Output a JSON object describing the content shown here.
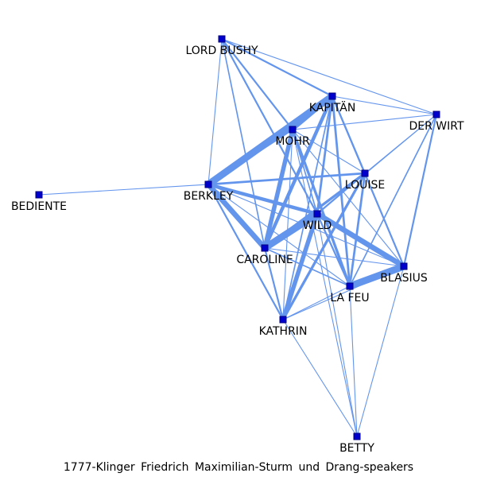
{
  "caption": "1777-Klinger_Friedrich_Maximilian-Sturm_und_Drang-speakers",
  "colors": {
    "edge": "#6495ED",
    "node_fill": "#0000CD",
    "node_stroke": "#000080"
  },
  "nodes": [
    {
      "id": "LORD BUSHY",
      "label": "LORD BUSHY"
    },
    {
      "id": "KAPITÄN",
      "label": "KAPITÄN"
    },
    {
      "id": "DER WIRT",
      "label": "DER WIRT"
    },
    {
      "id": "MOHR",
      "label": "MOHR"
    },
    {
      "id": "LOUISE",
      "label": "LOUISE"
    },
    {
      "id": "BERKLEY",
      "label": "BERKLEY"
    },
    {
      "id": "BEDIENTE",
      "label": "BEDIENTE"
    },
    {
      "id": "WILD",
      "label": "WILD"
    },
    {
      "id": "CAROLINE",
      "label": "CAROLINE"
    },
    {
      "id": "BLASIUS",
      "label": "BLASIUS"
    },
    {
      "id": "LA FEU",
      "label": "LA FEU"
    },
    {
      "id": "KATHRIN",
      "label": "KATHRIN"
    },
    {
      "id": "BETTY",
      "label": "BETTY"
    }
  ],
  "edges": [
    {
      "source": "KAPITÄN",
      "target": "BERKLEY",
      "weight": 8
    },
    {
      "source": "WILD",
      "target": "CAROLINE",
      "weight": 8
    },
    {
      "source": "LA FEU",
      "target": "BLASIUS",
      "weight": 8
    },
    {
      "source": "BERKLEY",
      "target": "CAROLINE",
      "weight": 6
    },
    {
      "source": "WILD",
      "target": "BLASIUS",
      "weight": 6
    },
    {
      "source": "MOHR",
      "target": "CAROLINE",
      "weight": 5
    },
    {
      "source": "KAPITÄN",
      "target": "CAROLINE",
      "weight": 4
    },
    {
      "source": "BERKLEY",
      "target": "WILD",
      "weight": 4
    },
    {
      "source": "KAPITÄN",
      "target": "MOHR",
      "weight": 4
    },
    {
      "source": "WILD",
      "target": "KATHRIN",
      "weight": 5
    },
    {
      "source": "LOUISE",
      "target": "KATHRIN",
      "weight": 3
    },
    {
      "source": "MOHR",
      "target": "LA FEU",
      "weight": 3
    },
    {
      "source": "LOUISE",
      "target": "CAROLINE",
      "weight": 3
    },
    {
      "source": "BERKLEY",
      "target": "LOUISE",
      "weight": 2.5
    },
    {
      "source": "KAPITÄN",
      "target": "WILD",
      "weight": 2.5
    },
    {
      "source": "KAPITÄN",
      "target": "LA FEU",
      "weight": 2.5
    },
    {
      "source": "KAPITÄN",
      "target": "LOUISE",
      "weight": 2
    },
    {
      "source": "MOHR",
      "target": "BERKLEY",
      "weight": 2
    },
    {
      "source": "CAROLINE",
      "target": "KATHRIN",
      "weight": 2
    },
    {
      "source": "LORD BUSHY",
      "target": "MOHR",
      "weight": 2
    },
    {
      "source": "LORD BUSHY",
      "target": "WILD",
      "weight": 2
    },
    {
      "source": "LORD BUSHY",
      "target": "KAPITÄN",
      "weight": 2
    },
    {
      "source": "LOUISE",
      "target": "LA FEU",
      "weight": 2.5
    },
    {
      "source": "DER WIRT",
      "target": "BLASIUS",
      "weight": 2
    },
    {
      "source": "BERKLEY",
      "target": "KATHRIN",
      "weight": 2
    },
    {
      "source": "LOUISE",
      "target": "WILD",
      "weight": 2
    },
    {
      "source": "KAPITÄN",
      "target": "BLASIUS",
      "weight": 2
    },
    {
      "source": "LORD BUSHY",
      "target": "CAROLINE",
      "weight": 1.5
    },
    {
      "source": "KAPITÄN",
      "target": "KATHRIN",
      "weight": 1.5
    },
    {
      "source": "DER WIRT",
      "target": "LA FEU",
      "weight": 1.5
    },
    {
      "source": "WILD",
      "target": "LA FEU",
      "weight": 2
    },
    {
      "source": "MOHR",
      "target": "WILD",
      "weight": 1.5
    },
    {
      "source": "LOUISE",
      "target": "BLASIUS",
      "weight": 1.5
    },
    {
      "source": "CAROLINE",
      "target": "LA FEU",
      "weight": 1.5
    },
    {
      "source": "LORD BUSHY",
      "target": "BERKLEY",
      "weight": 1
    },
    {
      "source": "LORD BUSHY",
      "target": "DER WIRT",
      "weight": 1
    },
    {
      "source": "KAPITÄN",
      "target": "DER WIRT",
      "weight": 1
    },
    {
      "source": "BEDIENTE",
      "target": "BERKLEY",
      "weight": 1
    },
    {
      "source": "DER WIRT",
      "target": "MOHR",
      "weight": 1
    },
    {
      "source": "DER WIRT",
      "target": "LOUISE",
      "weight": 1
    },
    {
      "source": "DER WIRT",
      "target": "WILD",
      "weight": 1
    },
    {
      "source": "MOHR",
      "target": "LOUISE",
      "weight": 1
    },
    {
      "source": "MOHR",
      "target": "KATHRIN",
      "weight": 1
    },
    {
      "source": "MOHR",
      "target": "BLASIUS",
      "weight": 1
    },
    {
      "source": "BERKLEY",
      "target": "BLASIUS",
      "weight": 1
    },
    {
      "source": "BERKLEY",
      "target": "LA FEU",
      "weight": 1
    },
    {
      "source": "CAROLINE",
      "target": "BLASIUS",
      "weight": 1
    },
    {
      "source": "KATHRIN",
      "target": "LA FEU",
      "weight": 1
    },
    {
      "source": "KATHRIN",
      "target": "BETTY",
      "weight": 1
    },
    {
      "source": "LA FEU",
      "target": "BETTY",
      "weight": 1
    },
    {
      "source": "BLASIUS",
      "target": "BETTY",
      "weight": 1
    },
    {
      "source": "WILD",
      "target": "BETTY",
      "weight": 1
    },
    {
      "source": "LOUISE",
      "target": "BERKLEY",
      "weight": 1
    },
    {
      "source": "KATHRIN",
      "target": "BLASIUS",
      "weight": 1
    },
    {
      "source": "MOHR",
      "target": "BETTY",
      "weight": 1
    },
    {
      "source": "CAROLINE",
      "target": "WILD",
      "weight": 1
    }
  ]
}
